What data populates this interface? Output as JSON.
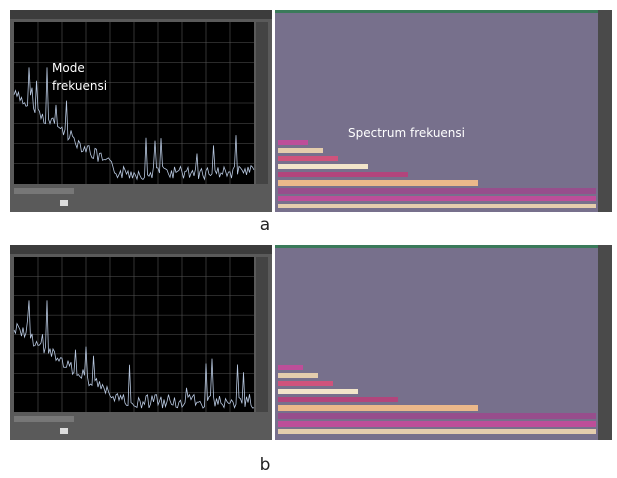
{
  "panels": [
    {
      "label": "a",
      "mode_label": [
        "Mode",
        "frekuensi"
      ],
      "spectrum_label": "Spectrum frekuensi"
    },
    {
      "label": "b"
    }
  ]
}
